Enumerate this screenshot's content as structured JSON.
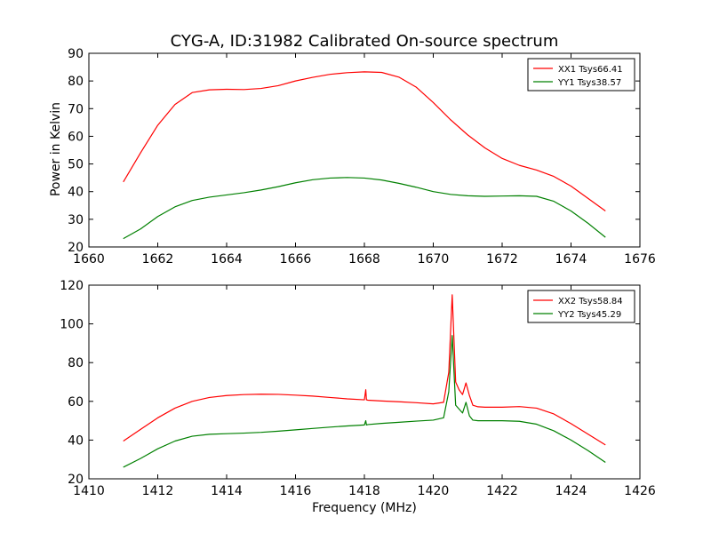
{
  "figure": {
    "title": "CYG-A, ID:31982 Calibrated On-source spectrum",
    "ylabel": "Power in Kelvin",
    "xlabel": "Frequency (MHz)"
  },
  "chart_data": [
    {
      "type": "line",
      "xlim": [
        1660,
        1676
      ],
      "ylim": [
        20,
        90
      ],
      "xticks": [
        1660,
        1662,
        1664,
        1666,
        1668,
        1670,
        1672,
        1674,
        1676
      ],
      "yticks": [
        20,
        30,
        40,
        50,
        60,
        70,
        80,
        90
      ],
      "legend_position": "top-right",
      "grid": false,
      "series": [
        {
          "name": "XX1 Tsys66.41",
          "color": "#ff0000",
          "x": [
            1661.0,
            1661.5,
            1662.0,
            1662.5,
            1663.0,
            1663.5,
            1664.0,
            1664.5,
            1665.0,
            1665.5,
            1666.0,
            1666.5,
            1667.0,
            1667.5,
            1668.0,
            1668.5,
            1669.0,
            1669.5,
            1670.0,
            1670.5,
            1671.0,
            1671.5,
            1672.0,
            1672.5,
            1673.0,
            1673.5,
            1674.0,
            1674.5,
            1675.0
          ],
          "y": [
            43.5,
            54.0,
            64.0,
            71.5,
            75.8,
            76.8,
            77.0,
            76.9,
            77.3,
            78.3,
            80.0,
            81.3,
            82.4,
            83.0,
            83.3,
            83.1,
            81.4,
            77.8,
            72.2,
            66.0,
            60.5,
            55.8,
            52.0,
            49.5,
            47.8,
            45.5,
            42.0,
            37.5,
            33.0
          ]
        },
        {
          "name": "YY1 Tsys38.57",
          "color": "#008000",
          "x": [
            1661.0,
            1661.5,
            1662.0,
            1662.5,
            1663.0,
            1663.5,
            1664.0,
            1664.5,
            1665.0,
            1665.5,
            1666.0,
            1666.5,
            1667.0,
            1667.5,
            1668.0,
            1668.5,
            1669.0,
            1669.5,
            1670.0,
            1670.5,
            1671.0,
            1671.5,
            1672.0,
            1672.5,
            1673.0,
            1673.5,
            1674.0,
            1674.5,
            1675.0
          ],
          "y": [
            23.0,
            26.5,
            31.0,
            34.5,
            36.8,
            38.0,
            38.8,
            39.6,
            40.6,
            41.8,
            43.2,
            44.3,
            44.9,
            45.1,
            44.9,
            44.2,
            43.0,
            41.6,
            40.0,
            39.0,
            38.5,
            38.3,
            38.4,
            38.5,
            38.3,
            36.5,
            33.0,
            28.5,
            23.5
          ]
        }
      ]
    },
    {
      "type": "line",
      "xlim": [
        1410,
        1426
      ],
      "ylim": [
        20,
        120
      ],
      "xticks": [
        1410,
        1412,
        1414,
        1416,
        1418,
        1420,
        1422,
        1424,
        1426
      ],
      "yticks": [
        20,
        40,
        60,
        80,
        100,
        120
      ],
      "legend_position": "top-right",
      "grid": false,
      "series": [
        {
          "name": "XX2 Tsys58.84",
          "color": "#ff0000",
          "x": [
            1411.0,
            1411.5,
            1412.0,
            1412.5,
            1413.0,
            1413.5,
            1414.0,
            1414.5,
            1415.0,
            1415.5,
            1416.0,
            1416.5,
            1417.0,
            1417.5,
            1418.0,
            1418.04,
            1418.06,
            1418.1,
            1418.5,
            1419.0,
            1419.5,
            1420.0,
            1420.3,
            1420.45,
            1420.55,
            1420.65,
            1420.75,
            1420.85,
            1420.95,
            1421.05,
            1421.15,
            1421.3,
            1421.5,
            1422.0,
            1422.5,
            1423.0,
            1423.5,
            1424.0,
            1424.5,
            1425.0
          ],
          "y": [
            39.5,
            45.5,
            51.5,
            56.5,
            60.0,
            62.0,
            63.0,
            63.5,
            63.7,
            63.6,
            63.2,
            62.7,
            62.0,
            61.3,
            60.8,
            66.0,
            60.8,
            60.6,
            60.2,
            59.8,
            59.3,
            58.7,
            59.5,
            75.0,
            115.0,
            70.0,
            66.0,
            63.5,
            69.5,
            63.0,
            58.0,
            57.2,
            57.0,
            57.0,
            57.3,
            56.5,
            53.5,
            48.5,
            43.0,
            37.5
          ]
        },
        {
          "name": "YY2 Tsys45.29",
          "color": "#008000",
          "x": [
            1411.0,
            1411.5,
            1412.0,
            1412.5,
            1413.0,
            1413.5,
            1414.0,
            1414.5,
            1415.0,
            1415.5,
            1416.0,
            1416.5,
            1417.0,
            1417.5,
            1418.0,
            1418.04,
            1418.06,
            1418.1,
            1418.5,
            1419.0,
            1419.5,
            1420.0,
            1420.3,
            1420.45,
            1420.55,
            1420.65,
            1420.75,
            1420.85,
            1420.95,
            1421.05,
            1421.15,
            1421.3,
            1421.5,
            1422.0,
            1422.5,
            1423.0,
            1423.5,
            1424.0,
            1424.5,
            1425.0
          ],
          "y": [
            26.0,
            30.5,
            35.5,
            39.5,
            42.0,
            43.0,
            43.3,
            43.6,
            44.0,
            44.6,
            45.3,
            46.0,
            46.7,
            47.3,
            47.8,
            50.0,
            47.8,
            48.0,
            48.6,
            49.2,
            49.8,
            50.3,
            51.5,
            65.0,
            94.0,
            58.0,
            56.0,
            54.0,
            59.5,
            52.5,
            50.3,
            50.0,
            50.0,
            50.0,
            49.7,
            48.2,
            44.8,
            40.0,
            34.5,
            28.5
          ]
        }
      ]
    }
  ]
}
